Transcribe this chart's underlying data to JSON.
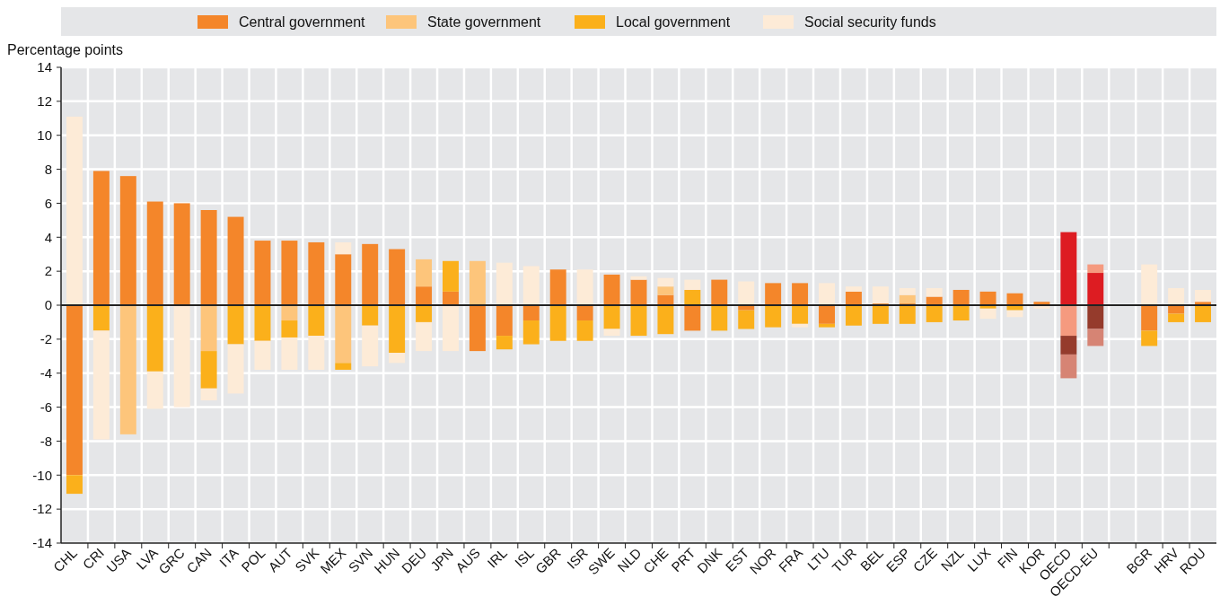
{
  "chart_data": {
    "type": "bar",
    "stacked": true,
    "ylabel": "Percentage points",
    "categories": [
      "CHL",
      "CRI",
      "USA",
      "LVA",
      "GRC",
      "CAN",
      "ITA",
      "POL",
      "AUT",
      "SVK",
      "MEX",
      "SVN",
      "HUN",
      "DEU",
      "JPN",
      "AUS",
      "IRL",
      "ISL",
      "GBR",
      "ISR",
      "SWE",
      "NLD",
      "CHE",
      "PRT",
      "DNK",
      "EST",
      "NOR",
      "FRA",
      "LTU",
      "TUR",
      "BEL",
      "ESP",
      "CZE",
      "NZL",
      "LUX",
      "FIN",
      "KOR",
      "OECD",
      "OECD-EU",
      null,
      "BGR",
      "HRV",
      "ROU"
    ],
    "series": [
      {
        "name": "Central government",
        "color": "#f4862a",
        "colors": [
          "#f4862a",
          "#f4862a",
          "#f4862a",
          "#f4862a",
          "#f4862a",
          "#f4862a",
          "#f4862a",
          "#f4862a",
          "#f4862a",
          "#f4862a",
          "#f4862a",
          "#f4862a",
          "#f4862a",
          "#f4862a",
          "#f4862a",
          "#f4862a",
          "#f4862a",
          "#f4862a",
          "#f4862a",
          "#f4862a",
          "#f4862a",
          "#f4862a",
          "#f4862a",
          "#f4862a",
          "#f4862a",
          "#f4862a",
          "#f4862a",
          "#f4862a",
          "#f4862a",
          "#f4862a",
          "#f4862a",
          "#f4862a",
          "#f4862a",
          "#f4862a",
          "#f4862a",
          "#f4862a",
          "#f4862a",
          "#dd1c22",
          "#dd1c22",
          null,
          "#f4862a",
          "#f4862a",
          "#f4862a"
        ],
        "values": [
          -10.0,
          7.9,
          7.6,
          6.1,
          6.0,
          5.6,
          5.2,
          3.8,
          3.8,
          3.7,
          3.0,
          3.6,
          3.3,
          1.1,
          0.8,
          -2.7,
          -1.8,
          -0.9,
          2.1,
          -0.9,
          1.8,
          1.5,
          0.6,
          -1.5,
          1.5,
          -0.3,
          1.3,
          1.3,
          -1.1,
          0.8,
          0.1,
          0.1,
          0.5,
          0.9,
          0.8,
          0.7,
          0.2,
          4.3,
          1.9,
          null,
          -1.5,
          -0.5,
          0.2
        ]
      },
      {
        "name": "State government",
        "color": "#fdc57b",
        "colors": [
          null,
          null,
          "#fdc57b",
          null,
          null,
          "#fdc57b",
          null,
          null,
          "#fdc57b",
          null,
          "#fdc57b",
          null,
          null,
          "#fdc57b",
          null,
          "#fdc57b",
          null,
          null,
          null,
          null,
          null,
          null,
          "#fdc57b",
          null,
          null,
          null,
          null,
          null,
          null,
          null,
          null,
          "#fdc57b",
          null,
          null,
          null,
          null,
          null,
          "#f59a7f",
          "#f59a7f",
          null,
          null,
          null,
          null
        ],
        "values": [
          null,
          null,
          -7.6,
          null,
          null,
          -2.7,
          null,
          null,
          -0.9,
          null,
          -3.4,
          null,
          null,
          1.6,
          null,
          2.6,
          null,
          null,
          null,
          null,
          null,
          null,
          0.5,
          null,
          null,
          null,
          null,
          null,
          null,
          null,
          null,
          0.5,
          null,
          null,
          null,
          null,
          null,
          -1.8,
          0.5,
          null,
          null,
          null,
          null
        ]
      },
      {
        "name": "Local government",
        "color": "#fbb01b",
        "colors": [
          "#fbb01b",
          "#fbb01b",
          null,
          "#fbb01b",
          null,
          "#fbb01b",
          "#fbb01b",
          "#fbb01b",
          "#fbb01b",
          "#fbb01b",
          "#fbb01b",
          "#fbb01b",
          "#fbb01b",
          "#fbb01b",
          "#fbb01b",
          null,
          "#fbb01b",
          "#fbb01b",
          "#fbb01b",
          "#fbb01b",
          "#fbb01b",
          "#fbb01b",
          "#fbb01b",
          "#fbb01b",
          "#fbb01b",
          "#fbb01b",
          "#fbb01b",
          "#fbb01b",
          "#fbb01b",
          "#fbb01b",
          "#fbb01b",
          "#fbb01b",
          "#fbb01b",
          "#fbb01b",
          "#fbb01b",
          "#fbb01b",
          null,
          "#953b2c",
          "#953b2c",
          null,
          "#fbb01b",
          "#fbb01b",
          "#fbb01b"
        ],
        "values": [
          -1.1,
          -1.5,
          null,
          -3.9,
          null,
          -2.2,
          -2.3,
          -2.1,
          -1.0,
          -1.8,
          -0.4,
          -1.2,
          -2.8,
          -1.0,
          1.8,
          null,
          -0.8,
          -1.4,
          -2.1,
          -1.2,
          -1.4,
          -1.8,
          -1.7,
          0.9,
          -1.5,
          -1.1,
          -1.3,
          -1.1,
          -0.2,
          -1.2,
          -1.1,
          -1.1,
          -1.0,
          -0.9,
          -0.2,
          -0.3,
          null,
          -1.1,
          -1.4,
          null,
          -0.9,
          -0.5,
          -1.0
        ]
      },
      {
        "name": "Social security funds",
        "color": "#fdebd7",
        "colors": [
          "#fdebd7",
          "#fdebd7",
          null,
          "#fdebd7",
          "#fdebd7",
          "#fdebd7",
          "#fdebd7",
          "#fdebd7",
          "#fdebd7",
          "#fdebd7",
          "#fdebd7",
          "#fdebd7",
          "#fdebd7",
          "#fdebd7",
          "#fdebd7",
          null,
          "#fdebd7",
          "#fdebd7",
          null,
          "#fdebd7",
          "#fdebd7",
          "#fdebd7",
          "#fdebd7",
          "#fdebd7",
          null,
          "#fdebd7",
          null,
          "#fdebd7",
          "#fdebd7",
          "#fdebd7",
          "#fdebd7",
          "#fdebd7",
          "#fdebd7",
          null,
          "#fdebd7",
          "#fdebd7",
          "#fdebd7",
          "#d68474",
          "#d68474",
          null,
          "#fdebd7",
          "#fdebd7",
          "#fdebd7"
        ],
        "values": [
          11.1,
          -6.4,
          null,
          -2.2,
          -6.0,
          -0.7,
          -2.9,
          -1.7,
          -1.9,
          -2.0,
          0.7,
          -2.4,
          -0.6,
          -1.7,
          -2.7,
          null,
          2.5,
          2.3,
          null,
          2.1,
          -0.4,
          0.2,
          0.5,
          0.6,
          null,
          1.4,
          null,
          -0.2,
          1.3,
          0.3,
          1.0,
          0.4,
          0.5,
          null,
          -0.6,
          -0.4,
          -0.2,
          -1.4,
          -1.0,
          null,
          2.4,
          1.0,
          0.7
        ]
      }
    ],
    "ylim": [
      -14,
      14
    ],
    "yticks": [
      -14,
      -12,
      -10,
      -8,
      -6,
      -4,
      -2,
      0,
      2,
      4,
      6,
      8,
      10,
      12,
      14
    ],
    "grid": true,
    "legend": "top"
  }
}
